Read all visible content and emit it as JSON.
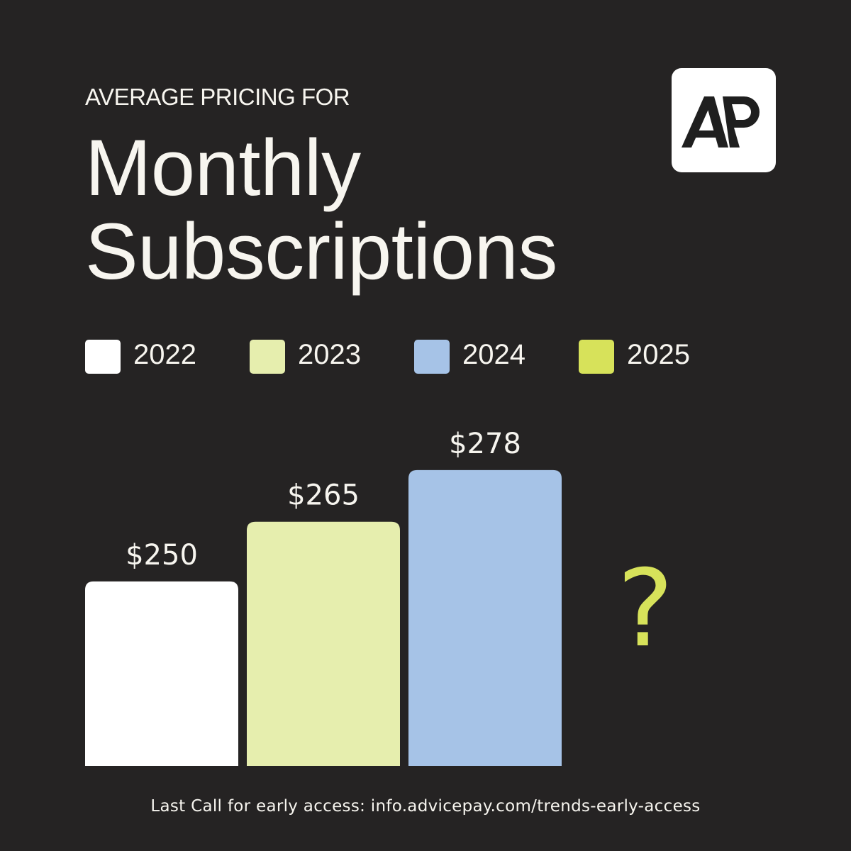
{
  "header": {
    "eyebrow": "AVERAGE PRICING FOR",
    "title_line1": "Monthly",
    "title_line2": "Subscriptions"
  },
  "logo": {
    "text": "AP",
    "background": "#ffffff",
    "color": "#1f1f1f"
  },
  "legend": [
    {
      "label": "2022",
      "color": "#ffffff"
    },
    {
      "label": "2023",
      "color": "#e6eeae"
    },
    {
      "label": "2024",
      "color": "#a6c3e7"
    },
    {
      "label": "2025",
      "color": "#d7e25a"
    }
  ],
  "chart_data": {
    "type": "bar",
    "categories": [
      "2022",
      "2023",
      "2024",
      "2025"
    ],
    "values": [
      250,
      265,
      278,
      null
    ],
    "labels": [
      "$250",
      "$265",
      "$278",
      "?"
    ],
    "colors": [
      "#ffffff",
      "#e6eeae",
      "#a6c3e7",
      "#d7e25a"
    ],
    "title": "Monthly Subscriptions",
    "xlabel": "",
    "ylabel": "",
    "grid": false,
    "legend_position": "top"
  },
  "footer": {
    "text": "Last Call for early access: info.advicepay.com/trends-early-access"
  },
  "colors": {
    "background": "#252323",
    "text": "#f7f5ef",
    "accent": "#d7e25a"
  }
}
